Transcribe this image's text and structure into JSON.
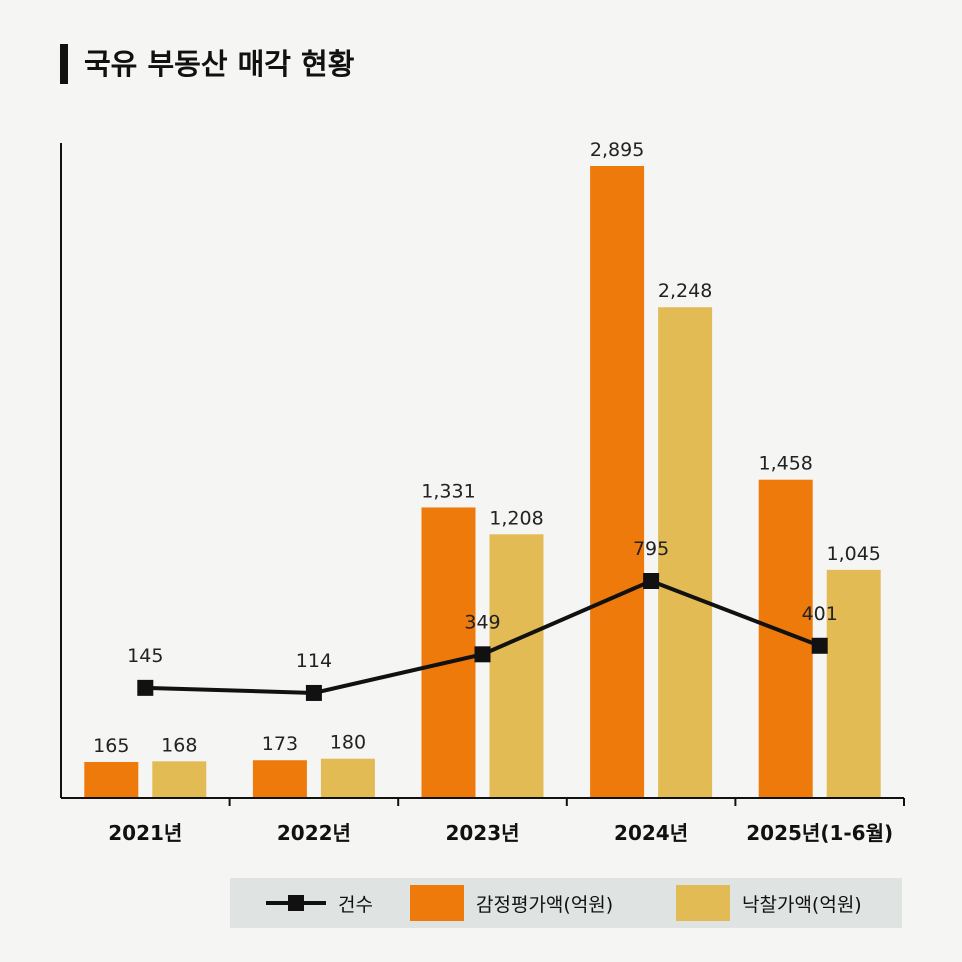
{
  "title": "국유 부동산 매각 현황",
  "chart_data": {
    "type": "bar",
    "title": "국유 부동산 매각 현황",
    "categories": [
      "2021년",
      "2022년",
      "2023년",
      "2024년",
      "2025년(1-6월)"
    ],
    "series": [
      {
        "name": "감정평가액(억원)",
        "type": "bar",
        "color": "#ee7a0b",
        "values": [
          165,
          173,
          1331,
          2895,
          1458
        ],
        "labels": [
          "165",
          "173",
          "1,331",
          "2,895",
          "1,458"
        ]
      },
      {
        "name": "낙찰가액(억원)",
        "type": "bar",
        "color": "#e3bb54",
        "values": [
          168,
          180,
          1208,
          2248,
          1045
        ],
        "labels": [
          "168",
          "180",
          "1,208",
          "2,248",
          "1,045"
        ]
      },
      {
        "name": "건수",
        "type": "line",
        "color": "#111111",
        "values": [
          145,
          114,
          349,
          795,
          401
        ],
        "labels": [
          "145",
          "114",
          "349",
          "795",
          "401"
        ]
      }
    ],
    "ylim_bars": [
      0,
      2895
    ],
    "ylim_line": [
      -525,
      795
    ],
    "legend_position": "bottom-right",
    "grid": false
  },
  "legend": {
    "count": "건수",
    "appraisal": "감정평가액(억원)",
    "winning_bid": "낙찰가액(억원)"
  }
}
